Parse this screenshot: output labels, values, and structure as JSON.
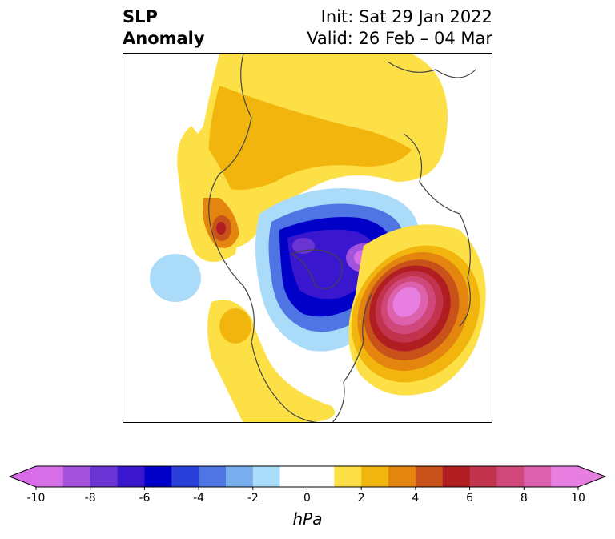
{
  "title": {
    "left_line1": "SLP",
    "left_line2": "Anomaly",
    "right_line1": "Init: Sat 29 Jan 2022",
    "right_line2": "Valid: 26 Feb – 04 Mar"
  },
  "colorbar": {
    "units": "hPa",
    "ticks": [
      "-10",
      "-8",
      "-6",
      "-4",
      "-2",
      "0",
      "2",
      "4",
      "6",
      "8",
      "10"
    ],
    "min": -10,
    "max": 10,
    "extend": "both",
    "colors": [
      "#d66fe8",
      "#a352de",
      "#6a34d4",
      "#3a16cf",
      "#0000c8",
      "#2a3fd9",
      "#4f74e3",
      "#78aeee",
      "#aadbf8",
      "#ffffff",
      "#ffffff",
      "#fde046",
      "#f1b50e",
      "#e4850f",
      "#c9511a",
      "#b01e22",
      "#c2334e",
      "#d0487a",
      "#de61ad",
      "#e87ee0"
    ],
    "under_color": "#d96cea",
    "over_color": "#e67ee0"
  },
  "map": {
    "projection": "north-polar",
    "highlights": [
      "positive-anomaly-north-atlantic",
      "negative-anomaly-polar-canada",
      "positive-anomaly-northeast-pacific"
    ]
  }
}
